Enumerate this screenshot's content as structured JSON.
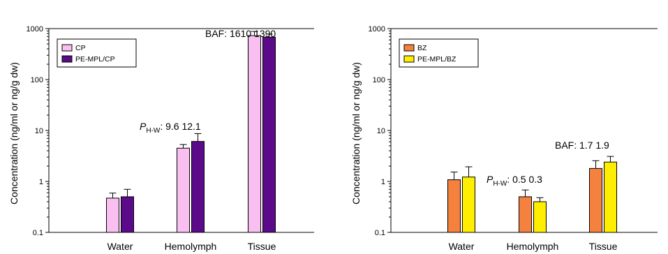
{
  "chart_data": [
    {
      "type": "bar",
      "scale": "log",
      "ylim": [
        0.1,
        1000
      ],
      "yticks": [
        "1000",
        "100",
        "10",
        "1",
        "0.1"
      ],
      "ylabel": "Concentration (ng/ml or ng/g dw)",
      "categories": [
        "Water",
        "Hemolymph",
        "Tissue"
      ],
      "legend_position": "top-left",
      "series": [
        {
          "name": "CP",
          "color": "#f9bff0",
          "values": [
            0.47,
            4.5,
            730
          ],
          "error": [
            0.12,
            0.8,
            150
          ]
        },
        {
          "name": "PE-MPL/CP",
          "color": "#5b0a8a",
          "values": [
            0.5,
            6.1,
            680
          ],
          "error": [
            0.2,
            2.6,
            100
          ]
        }
      ],
      "annotations": [
        {
          "prefix": "P",
          "sub": "H-W",
          "text": ": 9.6   12.1",
          "category": "Hemolymph"
        },
        {
          "prefix": "",
          "sub": "",
          "text": "BAF: 1610   1390",
          "category": "Tissue"
        }
      ]
    },
    {
      "type": "bar",
      "scale": "log",
      "ylim": [
        0.1,
        1000
      ],
      "yticks": [
        "1000",
        "100",
        "10",
        "1",
        "0.1"
      ],
      "ylabel": "Concentration (ng/ml or ng/g dw)",
      "categories": [
        "Water",
        "Hemolymph",
        "Tissue"
      ],
      "legend_position": "top-left",
      "series": [
        {
          "name": "BZ",
          "color": "#f4813d",
          "values": [
            1.08,
            0.5,
            1.8
          ],
          "error": [
            0.45,
            0.18,
            0.75
          ]
        },
        {
          "name": "PE-MPL/BZ",
          "color": "#ffee00",
          "values": [
            1.22,
            0.4,
            2.4
          ],
          "error": [
            0.72,
            0.08,
            0.7
          ]
        }
      ],
      "annotations": [
        {
          "prefix": "P",
          "sub": "H-W",
          "text": ": 0.5   0.3",
          "category": "Hemolymph"
        },
        {
          "prefix": "",
          "sub": "",
          "text": "BAF: 1.7   1.9",
          "category": "Tissue"
        }
      ]
    }
  ]
}
